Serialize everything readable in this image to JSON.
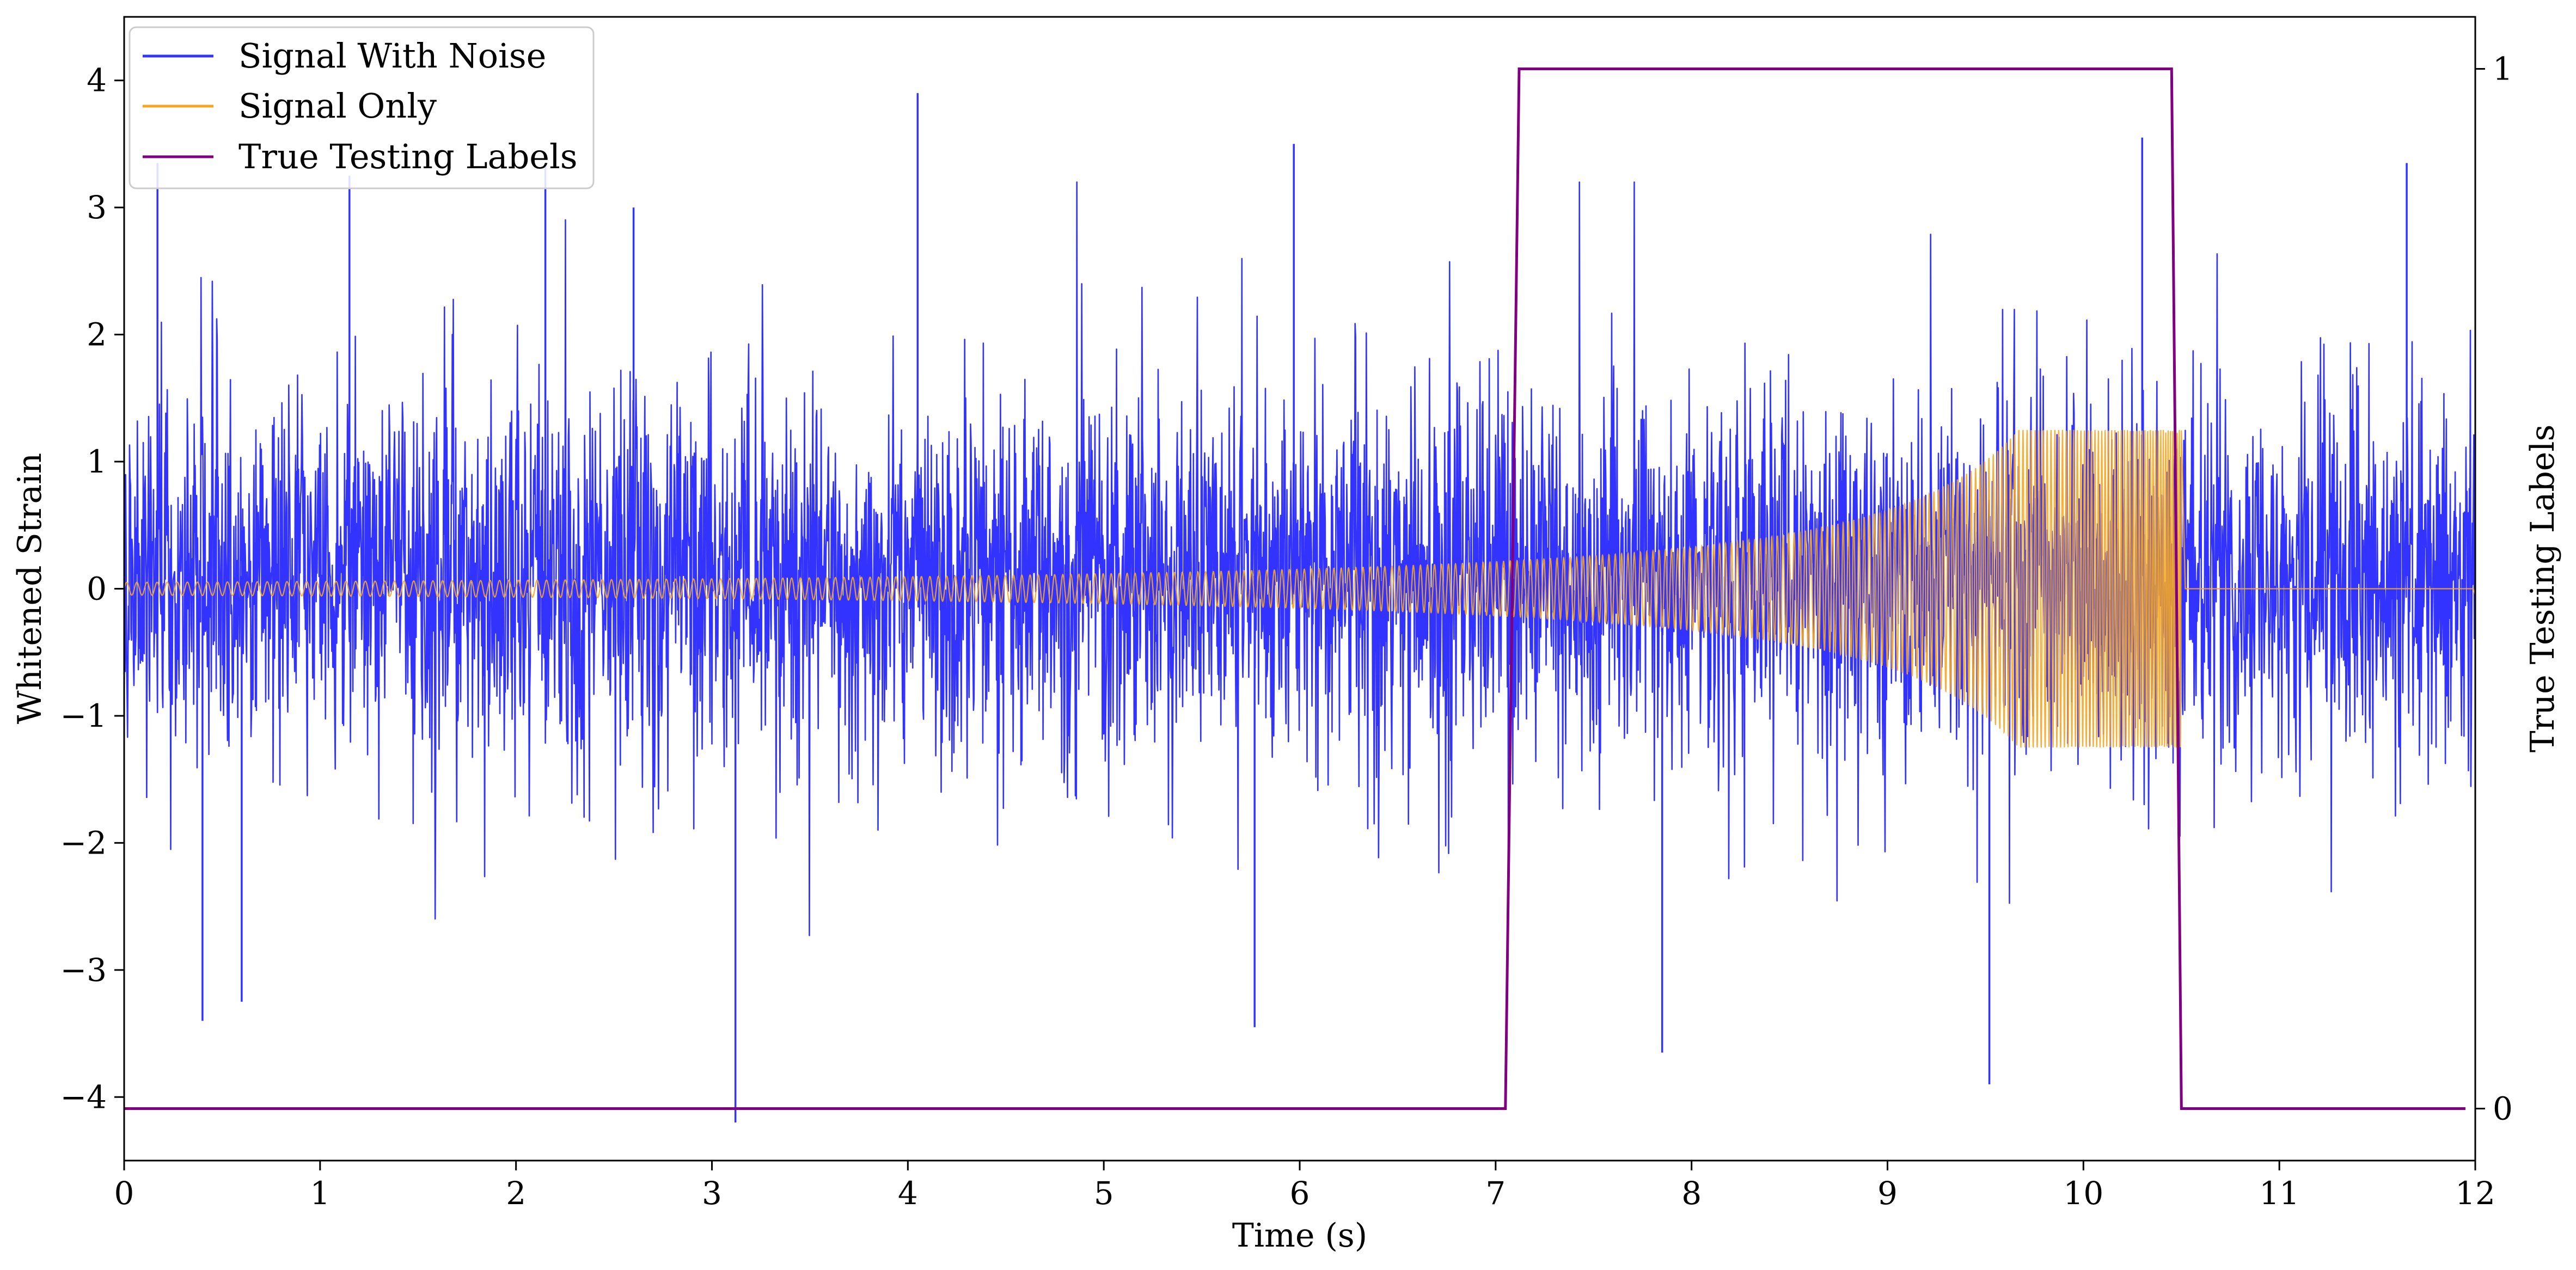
{
  "chart_data": {
    "type": "line",
    "title": "",
    "xlabel": "Time (s)",
    "ylabel": "Whitened Strain",
    "y2label": "True Testing Labels",
    "xlim": [
      0,
      12
    ],
    "ylim": [
      -4.5,
      4.5
    ],
    "y2lim": [
      -0.05,
      1.05
    ],
    "x_ticks": [
      0,
      1,
      2,
      3,
      4,
      5,
      6,
      7,
      8,
      9,
      10,
      11,
      12
    ],
    "y_ticks": [
      -4,
      -3,
      -2,
      -1,
      0,
      1,
      2,
      3,
      4
    ],
    "y2_ticks": [
      0,
      1
    ],
    "x_tick_labels": [
      "0",
      "1",
      "2",
      "3",
      "4",
      "5",
      "6",
      "7",
      "8",
      "9",
      "10",
      "11",
      "12"
    ],
    "y_tick_labels": [
      "−4",
      "−3",
      "−2",
      "−1",
      "0",
      "1",
      "2",
      "3",
      "4"
    ],
    "y2_tick_labels": [
      "0",
      "1"
    ],
    "grid": false,
    "legend_position": "top-left",
    "series": [
      {
        "name": "Signal With Noise",
        "color": "#3333ff",
        "axis": "left",
        "kind": "noisy-strain",
        "x_range": [
          0,
          12
        ],
        "typical_amplitude": [
          -1.7,
          2.0
        ],
        "peak_range": [
          -4.2,
          3.95
        ],
        "spikes": [
          {
            "x": 0.17,
            "y": 3.35
          },
          {
            "x": 0.4,
            "y": -3.4
          },
          {
            "x": 0.6,
            "y": -3.25
          },
          {
            "x": 1.15,
            "y": 3.25
          },
          {
            "x": 2.15,
            "y": 3.35
          },
          {
            "x": 2.6,
            "y": 3.0
          },
          {
            "x": 3.12,
            "y": -4.2
          },
          {
            "x": 4.05,
            "y": 3.9
          },
          {
            "x": 5.77,
            "y": -3.45
          },
          {
            "x": 5.97,
            "y": 3.5
          },
          {
            "x": 7.85,
            "y": -3.65
          },
          {
            "x": 9.52,
            "y": -3.9
          },
          {
            "x": 10.3,
            "y": 3.55
          },
          {
            "x": 11.65,
            "y": 3.35
          }
        ]
      },
      {
        "name": "Signal Only",
        "color": "#f5a623",
        "axis": "left",
        "kind": "chirp",
        "start_amplitude": 0.05,
        "peak_amplitude": 1.25,
        "merger_time": 10.5,
        "ringdown_end": 10.52,
        "x_range": [
          0,
          12
        ]
      },
      {
        "name": "True Testing Labels",
        "color": "#800080",
        "axis": "right",
        "kind": "step",
        "x": [
          0,
          7.05,
          7.12,
          10.45,
          10.5,
          11.95
        ],
        "y": [
          0,
          0,
          1,
          1,
          0,
          0
        ]
      }
    ]
  }
}
